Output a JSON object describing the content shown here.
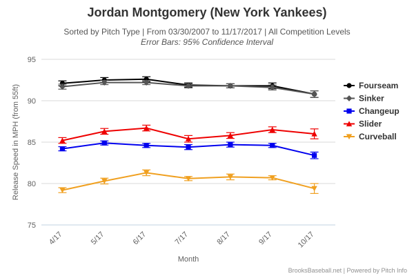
{
  "chart_data": {
    "type": "line",
    "title": "Jordan Montgomery (New York Yankees)",
    "subtitle": "Sorted by Pitch Type | From 03/30/2007 to 11/17/2017 | All Competition Levels",
    "subtitle2": "Error Bars: 95% Confidence Interval",
    "xlabel": "Month",
    "ylabel": "Release Speed in MPH (from 55ft)",
    "categories": [
      "4/17",
      "5/17",
      "6/17",
      "7/17",
      "8/17",
      "9/17",
      "10/17"
    ],
    "ylim": [
      75,
      95
    ],
    "yticks": [
      75,
      80,
      85,
      90,
      95
    ],
    "grid": true,
    "legend_position": "right",
    "series": [
      {
        "name": "Fourseam",
        "color": "#000000",
        "marker": "circle",
        "values": [
          92.1,
          92.5,
          92.6,
          91.9,
          91.8,
          91.8,
          90.8
        ],
        "err": [
          0.3,
          0.3,
          0.3,
          0.25,
          0.25,
          0.35,
          0.4
        ]
      },
      {
        "name": "Sinker",
        "color": "#555555",
        "marker": "diamond",
        "values": [
          91.7,
          92.2,
          92.2,
          91.8,
          91.8,
          91.6,
          90.8
        ],
        "err": [
          0.3,
          0.25,
          0.25,
          0.25,
          0.25,
          0.3,
          0.4
        ]
      },
      {
        "name": "Changeup",
        "color": "#0000ee",
        "marker": "square",
        "values": [
          84.2,
          84.9,
          84.6,
          84.4,
          84.7,
          84.6,
          83.4
        ],
        "err": [
          0.25,
          0.25,
          0.25,
          0.3,
          0.3,
          0.25,
          0.4
        ]
      },
      {
        "name": "Slider",
        "color": "#ee0000",
        "marker": "triangle",
        "values": [
          85.2,
          86.3,
          86.7,
          85.4,
          85.8,
          86.5,
          86.0
        ],
        "err": [
          0.35,
          0.35,
          0.35,
          0.4,
          0.35,
          0.35,
          0.6
        ]
      },
      {
        "name": "Curveball",
        "color": "#f0a020",
        "marker": "triangle-down",
        "values": [
          79.2,
          80.3,
          81.3,
          80.6,
          80.8,
          80.7,
          79.4
        ],
        "err": [
          0.3,
          0.35,
          0.35,
          0.25,
          0.35,
          0.25,
          0.6
        ]
      }
    ]
  },
  "credit": "BrooksBaseball.net | Powered by Pitch Info"
}
